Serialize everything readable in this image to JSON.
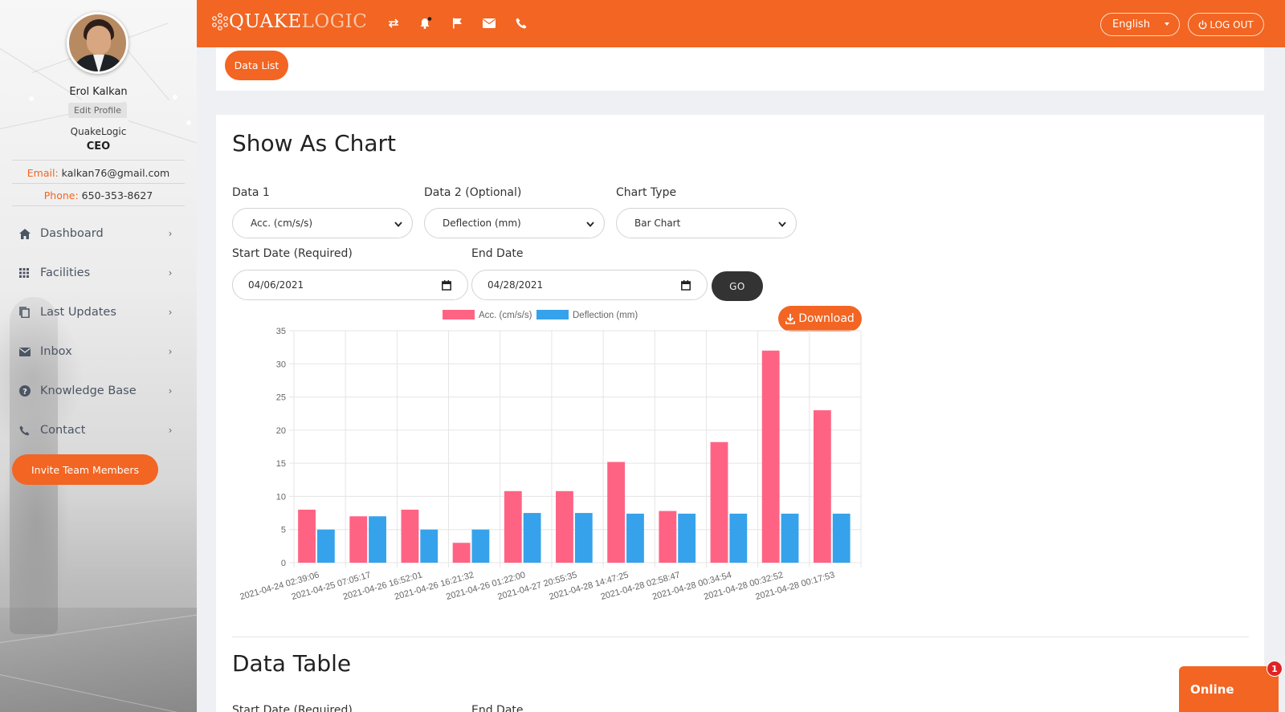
{
  "colors": {
    "brand_orange": "#f26522",
    "acc_series": "#ff6384",
    "deflection_series": "#36a2eb",
    "go_button": "#333333"
  },
  "profile": {
    "name": "Erol Kalkan",
    "edit_label": "Edit Profile",
    "company": "QuakeLogic",
    "role": "CEO",
    "email_label": "Email:",
    "email": "kalkan76@gmail.com",
    "phone_label": "Phone:",
    "phone": "650-353-8627"
  },
  "nav": [
    {
      "label": "Dashboard",
      "icon": "home-icon"
    },
    {
      "label": "Facilities",
      "icon": "grid-icon"
    },
    {
      "label": "Last Updates",
      "icon": "copy-icon"
    },
    {
      "label": "Inbox",
      "icon": "mail-icon"
    },
    {
      "label": "Knowledge Base",
      "icon": "help-icon"
    },
    {
      "label": "Contact",
      "icon": "phone-icon"
    }
  ],
  "invite_label": "Invite Team Members",
  "topbar": {
    "logo_part1": "QUAKE",
    "logo_part2": "LOGIC",
    "icons": [
      "swap-icon",
      "bell-icon",
      "flag-icon",
      "envelope-icon",
      "phone-icon"
    ],
    "language": "English",
    "logout_label": "LOG OUT"
  },
  "data_list_label": "Data List",
  "chart_section": {
    "title": "Show As Chart",
    "data1_label": "Data 1",
    "data1_value": "Acc. (cm/s/s)",
    "data2_label": "Data 2 (Optional)",
    "data2_value": "Deflection (mm)",
    "chart_type_label": "Chart Type",
    "chart_type_value": "Bar Chart",
    "start_label": "Start Date (Required)",
    "start_value": "04/06/2021",
    "end_label": "End Date",
    "end_value": "04/28/2021",
    "go_label": "GO",
    "download_label": "Download"
  },
  "chart_data": {
    "type": "bar",
    "categories": [
      "2021-04-24 02:39:06",
      "2021-04-25 07:05:17",
      "2021-04-26 16:52:01",
      "2021-04-26 16:21:32",
      "2021-04-26 01:22:00",
      "2021-04-27 20:55:35",
      "2021-04-28 14:47:25",
      "2021-04-28 02:58:47",
      "2021-04-28 00:34:54",
      "2021-04-28 00:32:52",
      "2021-04-28 00:17:53"
    ],
    "series": [
      {
        "name": "Acc. (cm/s/s)",
        "color": "#ff6384",
        "values": [
          8,
          7,
          8,
          3,
          10.8,
          10.8,
          15.2,
          7.8,
          18.2,
          32,
          23
        ]
      },
      {
        "name": "Deflection (mm)",
        "color": "#36a2eb",
        "values": [
          5,
          7,
          5,
          5,
          7.5,
          7.5,
          7.4,
          7.4,
          7.4,
          7.4,
          7.4
        ]
      }
    ],
    "ylim": [
      0,
      35
    ],
    "yticks": [
      0,
      5,
      10,
      15,
      20,
      25,
      30,
      35
    ],
    "grid": true,
    "legend": "top"
  },
  "table_section": {
    "title": "Data Table",
    "start_label": "Start Date (Required)",
    "end_label": "End Date"
  },
  "chat": {
    "label": "Online",
    "badge": "1"
  }
}
